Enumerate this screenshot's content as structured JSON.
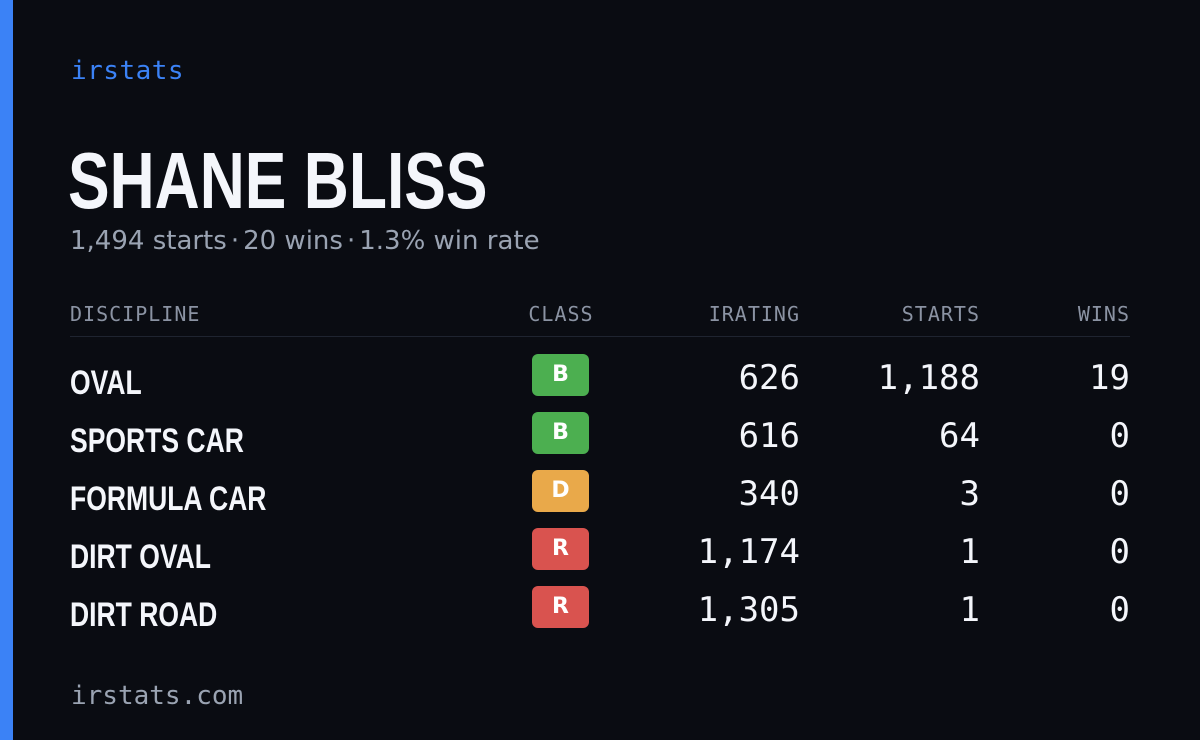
{
  "brand": "irstats",
  "driver": {
    "name": "SHANE BLISS",
    "starts": "1,494 starts",
    "wins": "20 wins",
    "win_rate": "1.3% win rate",
    "separator": "·"
  },
  "table": {
    "headers": {
      "discipline": "DISCIPLINE",
      "class": "CLASS",
      "irating": "IRATING",
      "starts": "STARTS",
      "wins": "WINS"
    },
    "rows": [
      {
        "discipline": "OVAL",
        "class": "B",
        "class_color": "#4caf50",
        "irating": "626",
        "starts": "1,188",
        "wins": "19"
      },
      {
        "discipline": "SPORTS CAR",
        "class": "B",
        "class_color": "#4caf50",
        "irating": "616",
        "starts": "64",
        "wins": "0"
      },
      {
        "discipline": "FORMULA CAR",
        "class": "D",
        "class_color": "#e9a94a",
        "irating": "340",
        "starts": "3",
        "wins": "0"
      },
      {
        "discipline": "DIRT OVAL",
        "class": "R",
        "class_color": "#d9534f",
        "irating": "1,174",
        "starts": "1",
        "wins": "0"
      },
      {
        "discipline": "DIRT ROAD",
        "class": "R",
        "class_color": "#d9534f",
        "irating": "1,305",
        "starts": "1",
        "wins": "0"
      }
    ]
  },
  "footer": "irstats.com",
  "colors": {
    "accent": "#3b82f6",
    "background": "#0a0c12"
  }
}
